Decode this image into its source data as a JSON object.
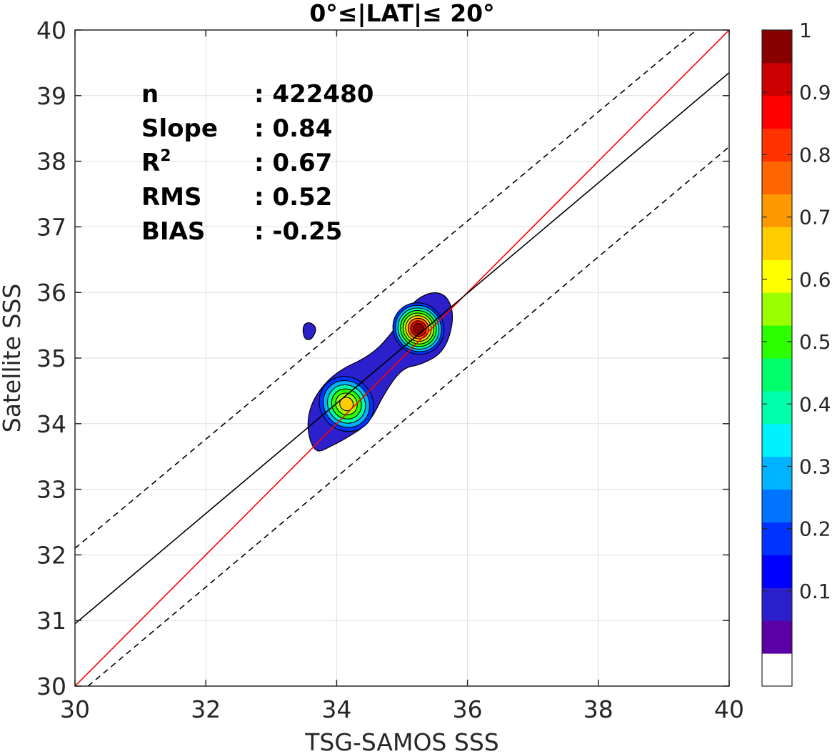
{
  "chart_data": {
    "type": "contour",
    "title": "0°≤|LAT|≤ 20°",
    "xlabel": "TSG-SAMOS SSS",
    "ylabel": "Satellite SSS",
    "xlim": [
      30,
      40
    ],
    "ylim": [
      30,
      40
    ],
    "x_ticks": [
      "30",
      "32",
      "34",
      "36",
      "38",
      "40"
    ],
    "y_ticks": [
      "30",
      "31",
      "32",
      "33",
      "34",
      "35",
      "36",
      "37",
      "38",
      "39",
      "40"
    ],
    "grid": true,
    "stats": [
      {
        "label": "n",
        "value": ": 422480"
      },
      {
        "label": "Slope",
        "value": ": 0.84"
      },
      {
        "label": "R",
        "sup": "2",
        "value": ": 0.67"
      },
      {
        "label": "RMS",
        "value": ": 0.52"
      },
      {
        "label": "BIAS",
        "value": ": -0.25"
      }
    ],
    "lines": [
      {
        "role": "one-to-one",
        "color": "#ff0000",
        "style": "solid",
        "points": [
          [
            30,
            30
          ],
          [
            40,
            40
          ]
        ]
      },
      {
        "role": "regression",
        "color": "#000000",
        "style": "solid",
        "points": [
          [
            30,
            30.95
          ],
          [
            40,
            39.35
          ]
        ]
      },
      {
        "role": "upper-bound",
        "color": "#000000",
        "style": "dashed",
        "points": [
          [
            30,
            32.1
          ],
          [
            39.5,
            40
          ]
        ]
      },
      {
        "role": "lower-bound",
        "color": "#000000",
        "style": "dashed",
        "points": [
          [
            30.2,
            30
          ],
          [
            40,
            38.22
          ]
        ]
      }
    ],
    "density_peaks": [
      {
        "x": 34.15,
        "y": 34.3,
        "value": 0.7
      },
      {
        "x": 35.25,
        "y": 35.45,
        "value": 1.0
      }
    ],
    "colorbar": {
      "range": [
        0,
        1
      ],
      "tick_labels": [
        "0.1",
        "0.2",
        "0.3",
        "0.4",
        "0.5",
        "0.6",
        "0.7",
        "0.8",
        "0.9",
        "1"
      ],
      "tick_values": [
        0.1,
        0.2,
        0.3,
        0.4,
        0.5,
        0.6,
        0.7,
        0.8,
        0.9,
        1.0
      ],
      "colors": [
        "#ffffff",
        "#5a00a6",
        "#2c1fcc",
        "#0000ff",
        "#0033ff",
        "#0073ff",
        "#00b3ff",
        "#00f2ff",
        "#00ffaa",
        "#00ff6a",
        "#2bff00",
        "#9cff00",
        "#ffff00",
        "#ffcc00",
        "#ff9900",
        "#ff6600",
        "#ff3300",
        "#ff0000",
        "#cc0000",
        "#880000"
      ]
    }
  }
}
